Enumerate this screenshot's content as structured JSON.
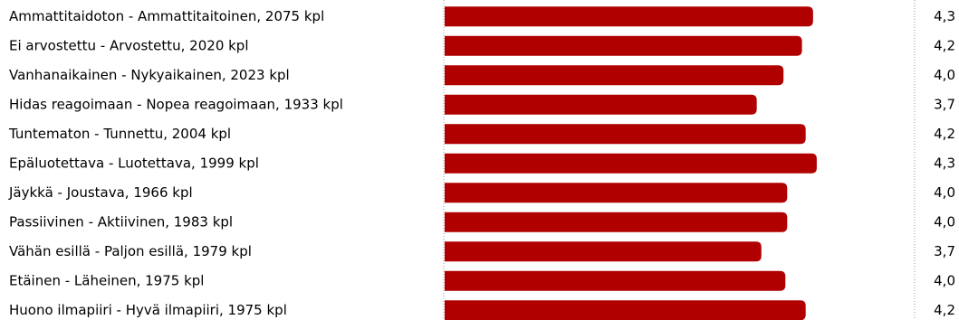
{
  "chart_data": {
    "type": "bar",
    "categories": [
      "Ammattitaidoton - Ammattitaitoinen, 2075 kpl",
      "Ei arvostettu - Arvostettu, 2020 kpl",
      "Vanhanaikainen - Nykyaikainen, 2023 kpl",
      "Hidas reagoimaan - Nopea reagoimaan, 1933 kpl",
      "Tuntematon - Tunnettu, 2004 kpl",
      "Epäluotettava - Luotettava, 1999 kpl",
      "Jäykkä - Joustava, 1966 kpl",
      "Passiivinen - Aktiivinen, 1983 kpl",
      "Vähän esillä - Paljon esillä, 1979 kpl",
      "Etäinen - Läheinen, 1975 kpl",
      "Huono ilmapiiri - Hyvä ilmapiiri, 1975 kpl"
    ],
    "values": [
      4.3,
      4.18,
      3.98,
      3.69,
      4.22,
      4.34,
      4.02,
      4.02,
      3.74,
      4.0,
      4.22
    ],
    "value_labels": [
      "4,3",
      "4,2",
      "4,0",
      "3,7",
      "4,2",
      "4,3",
      "4,0",
      "4,0",
      "3,7",
      "4,0",
      "4,2"
    ],
    "color": "#b00000",
    "xlim": [
      0.3,
      5.4
    ]
  }
}
